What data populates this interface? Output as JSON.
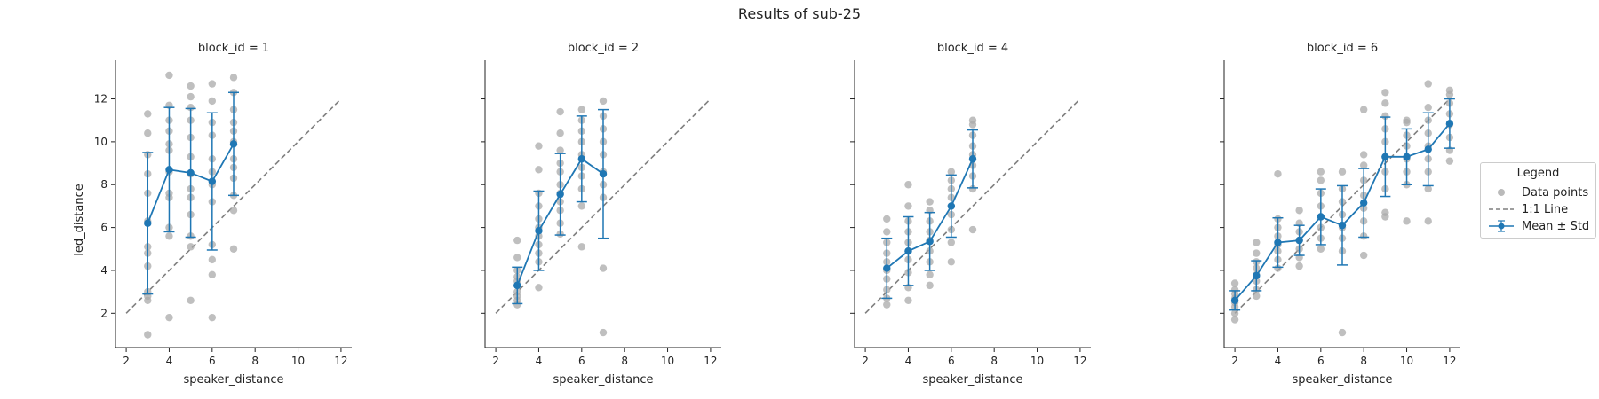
{
  "chart_data": {
    "type": "scatter",
    "title": "Results of sub-25",
    "xlabel": "speaker_distance",
    "ylabel": "led_distance",
    "xlim": [
      1.5,
      12.5
    ],
    "ylim": [
      0.4,
      13.8
    ],
    "xticks": [
      2,
      4,
      6,
      8,
      10,
      12
    ],
    "yticks": [
      2,
      4,
      6,
      8,
      10,
      12
    ],
    "identity_line": [
      2,
      12
    ],
    "colors": {
      "mean": "#1f77b4",
      "points": "#a9a9a9",
      "identity": "#7f7f7f"
    },
    "legend": {
      "title": "Legend",
      "entries": [
        "Data points",
        "1:1 Line",
        "Mean ± Std"
      ],
      "placement": "right"
    },
    "panels": [
      {
        "title": "block_id = 1",
        "mean": [
          {
            "x": 3,
            "mean": 6.2,
            "std": 3.3
          },
          {
            "x": 4,
            "mean": 8.7,
            "std": 2.9
          },
          {
            "x": 5,
            "mean": 8.55,
            "std": 3.0
          },
          {
            "x": 6,
            "mean": 8.15,
            "std": 3.2
          },
          {
            "x": 7,
            "mean": 9.9,
            "std": 2.4
          }
        ],
        "points": [
          [
            3,
            1.0
          ],
          [
            3,
            2.6
          ],
          [
            3,
            2.8
          ],
          [
            3,
            3.0
          ],
          [
            3,
            4.2
          ],
          [
            3,
            4.8
          ],
          [
            3,
            5.1
          ],
          [
            3,
            6.3
          ],
          [
            3,
            7.6
          ],
          [
            3,
            8.5
          ],
          [
            3,
            9.4
          ],
          [
            3,
            10.4
          ],
          [
            3,
            11.3
          ],
          [
            4,
            1.8
          ],
          [
            4,
            5.6
          ],
          [
            4,
            6.0
          ],
          [
            4,
            7.4
          ],
          [
            4,
            7.6
          ],
          [
            4,
            8.6
          ],
          [
            4,
            9.6
          ],
          [
            4,
            9.9
          ],
          [
            4,
            10.5
          ],
          [
            4,
            11.0
          ],
          [
            4,
            11.7
          ],
          [
            4,
            13.1
          ],
          [
            5,
            2.6
          ],
          [
            5,
            5.1
          ],
          [
            5,
            5.6
          ],
          [
            5,
            6.6
          ],
          [
            5,
            7.4
          ],
          [
            5,
            7.8
          ],
          [
            5,
            8.5
          ],
          [
            5,
            9.3
          ],
          [
            5,
            10.2
          ],
          [
            5,
            11.0
          ],
          [
            5,
            11.6
          ],
          [
            5,
            12.1
          ],
          [
            5,
            12.6
          ],
          [
            6,
            1.8
          ],
          [
            6,
            3.8
          ],
          [
            6,
            4.5
          ],
          [
            6,
            5.2
          ],
          [
            6,
            7.2
          ],
          [
            6,
            8.0
          ],
          [
            6,
            8.6
          ],
          [
            6,
            9.2
          ],
          [
            6,
            10.3
          ],
          [
            6,
            10.9
          ],
          [
            6,
            11.9
          ],
          [
            6,
            12.7
          ],
          [
            7,
            5.0
          ],
          [
            7,
            6.8
          ],
          [
            7,
            7.5
          ],
          [
            7,
            8.3
          ],
          [
            7,
            8.8
          ],
          [
            7,
            9.2
          ],
          [
            7,
            10.0
          ],
          [
            7,
            10.5
          ],
          [
            7,
            10.9
          ],
          [
            7,
            11.5
          ],
          [
            7,
            12.3
          ],
          [
            7,
            13.0
          ]
        ]
      },
      {
        "title": "block_id = 2",
        "mean": [
          {
            "x": 3,
            "mean": 3.3,
            "std": 0.85
          },
          {
            "x": 4,
            "mean": 5.85,
            "std": 1.85
          },
          {
            "x": 5,
            "mean": 7.55,
            "std": 1.9
          },
          {
            "x": 6,
            "mean": 9.2,
            "std": 2.0
          },
          {
            "x": 7,
            "mean": 8.5,
            "std": 3.0
          }
        ],
        "points": [
          [
            3,
            2.4
          ],
          [
            3,
            2.6
          ],
          [
            3,
            2.8
          ],
          [
            3,
            3.0
          ],
          [
            3,
            3.3
          ],
          [
            3,
            3.5
          ],
          [
            3,
            3.7
          ],
          [
            3,
            4.0
          ],
          [
            3,
            4.6
          ],
          [
            3,
            5.4
          ],
          [
            4,
            3.2
          ],
          [
            4,
            4.4
          ],
          [
            4,
            4.8
          ],
          [
            4,
            5.2
          ],
          [
            4,
            5.6
          ],
          [
            4,
            6.0
          ],
          [
            4,
            6.4
          ],
          [
            4,
            7.0
          ],
          [
            4,
            7.6
          ],
          [
            4,
            8.7
          ],
          [
            4,
            9.8
          ],
          [
            5,
            5.7
          ],
          [
            5,
            6.2
          ],
          [
            5,
            6.8
          ],
          [
            5,
            7.2
          ],
          [
            5,
            7.6
          ],
          [
            5,
            8.0
          ],
          [
            5,
            8.6
          ],
          [
            5,
            9.0
          ],
          [
            5,
            9.6
          ],
          [
            5,
            10.4
          ],
          [
            5,
            11.4
          ],
          [
            6,
            5.1
          ],
          [
            6,
            7.0
          ],
          [
            6,
            7.8
          ],
          [
            6,
            8.4
          ],
          [
            6,
            8.8
          ],
          [
            6,
            9.4
          ],
          [
            6,
            10.0
          ],
          [
            6,
            10.5
          ],
          [
            6,
            11.0
          ],
          [
            6,
            11.5
          ],
          [
            7,
            1.1
          ],
          [
            7,
            4.1
          ],
          [
            7,
            7.4
          ],
          [
            7,
            8.0
          ],
          [
            7,
            8.6
          ],
          [
            7,
            9.4
          ],
          [
            7,
            10.0
          ],
          [
            7,
            10.6
          ],
          [
            7,
            11.2
          ],
          [
            7,
            11.9
          ]
        ]
      },
      {
        "title": "block_id = 4",
        "mean": [
          {
            "x": 3,
            "mean": 4.1,
            "std": 1.4
          },
          {
            "x": 4,
            "mean": 4.9,
            "std": 1.6
          },
          {
            "x": 5,
            "mean": 5.35,
            "std": 1.35
          },
          {
            "x": 6,
            "mean": 7.0,
            "std": 1.45
          },
          {
            "x": 7,
            "mean": 9.2,
            "std": 1.35
          }
        ],
        "points": [
          [
            3,
            2.4
          ],
          [
            3,
            2.7
          ],
          [
            3,
            3.1
          ],
          [
            3,
            3.6
          ],
          [
            3,
            4.0
          ],
          [
            3,
            4.4
          ],
          [
            3,
            4.8
          ],
          [
            3,
            5.3
          ],
          [
            3,
            5.8
          ],
          [
            3,
            6.4
          ],
          [
            4,
            2.6
          ],
          [
            4,
            3.2
          ],
          [
            4,
            3.9
          ],
          [
            4,
            4.5
          ],
          [
            4,
            4.9
          ],
          [
            4,
            5.3
          ],
          [
            4,
            5.8
          ],
          [
            4,
            6.3
          ],
          [
            4,
            7.0
          ],
          [
            4,
            8.0
          ],
          [
            5,
            3.3
          ],
          [
            5,
            3.8
          ],
          [
            5,
            4.4
          ],
          [
            5,
            4.9
          ],
          [
            5,
            5.4
          ],
          [
            5,
            5.8
          ],
          [
            5,
            6.3
          ],
          [
            5,
            6.8
          ],
          [
            5,
            7.2
          ],
          [
            6,
            4.4
          ],
          [
            6,
            5.3
          ],
          [
            6,
            5.9
          ],
          [
            6,
            6.6
          ],
          [
            6,
            7.0
          ],
          [
            6,
            7.4
          ],
          [
            6,
            7.8
          ],
          [
            6,
            8.2
          ],
          [
            6,
            8.6
          ],
          [
            7,
            5.9
          ],
          [
            7,
            7.8
          ],
          [
            7,
            8.4
          ],
          [
            7,
            8.9
          ],
          [
            7,
            9.4
          ],
          [
            7,
            9.8
          ],
          [
            7,
            10.3
          ],
          [
            7,
            10.8
          ],
          [
            7,
            11.0
          ]
        ]
      },
      {
        "title": "block_id = 6",
        "mean": [
          {
            "x": 2,
            "mean": 2.6,
            "std": 0.45
          },
          {
            "x": 3,
            "mean": 3.75,
            "std": 0.7
          },
          {
            "x": 4,
            "mean": 5.3,
            "std": 1.15
          },
          {
            "x": 5,
            "mean": 5.4,
            "std": 0.7
          },
          {
            "x": 6,
            "mean": 6.5,
            "std": 1.3
          },
          {
            "x": 7,
            "mean": 6.1,
            "std": 1.85
          },
          {
            "x": 8,
            "mean": 7.15,
            "std": 1.6
          },
          {
            "x": 9,
            "mean": 9.3,
            "std": 1.85
          },
          {
            "x": 10,
            "mean": 9.3,
            "std": 1.3
          },
          {
            "x": 11,
            "mean": 9.65,
            "std": 1.7
          },
          {
            "x": 12,
            "mean": 10.85,
            "std": 1.15
          }
        ],
        "points": [
          [
            2,
            1.7
          ],
          [
            2,
            2.0
          ],
          [
            2,
            2.3
          ],
          [
            2,
            2.5
          ],
          [
            2,
            2.7
          ],
          [
            2,
            2.9
          ],
          [
            2,
            3.1
          ],
          [
            2,
            3.4
          ],
          [
            3,
            2.8
          ],
          [
            3,
            3.1
          ],
          [
            3,
            3.5
          ],
          [
            3,
            3.8
          ],
          [
            3,
            4.1
          ],
          [
            3,
            4.4
          ],
          [
            3,
            4.8
          ],
          [
            3,
            5.3
          ],
          [
            4,
            4.1
          ],
          [
            4,
            4.5
          ],
          [
            4,
            4.9
          ],
          [
            4,
            5.2
          ],
          [
            4,
            5.6
          ],
          [
            4,
            6.0
          ],
          [
            4,
            6.4
          ],
          [
            4,
            8.5
          ],
          [
            5,
            4.2
          ],
          [
            5,
            4.6
          ],
          [
            5,
            5.0
          ],
          [
            5,
            5.4
          ],
          [
            5,
            5.8
          ],
          [
            5,
            6.2
          ],
          [
            5,
            6.8
          ],
          [
            6,
            5.0
          ],
          [
            6,
            5.5
          ],
          [
            6,
            6.0
          ],
          [
            6,
            6.5
          ],
          [
            6,
            7.0
          ],
          [
            6,
            7.6
          ],
          [
            6,
            8.2
          ],
          [
            6,
            8.6
          ],
          [
            7,
            1.1
          ],
          [
            7,
            4.9
          ],
          [
            7,
            5.5
          ],
          [
            7,
            6.0
          ],
          [
            7,
            6.6
          ],
          [
            7,
            7.2
          ],
          [
            7,
            7.8
          ],
          [
            7,
            8.6
          ],
          [
            8,
            4.7
          ],
          [
            8,
            5.6
          ],
          [
            8,
            6.3
          ],
          [
            8,
            6.9
          ],
          [
            8,
            7.5
          ],
          [
            8,
            8.2
          ],
          [
            8,
            8.9
          ],
          [
            8,
            9.4
          ],
          [
            8,
            11.5
          ],
          [
            9,
            6.5
          ],
          [
            9,
            6.7
          ],
          [
            9,
            7.8
          ],
          [
            9,
            8.6
          ],
          [
            9,
            9.3
          ],
          [
            9,
            10.0
          ],
          [
            9,
            10.6
          ],
          [
            9,
            11.2
          ],
          [
            9,
            11.8
          ],
          [
            9,
            12.3
          ],
          [
            10,
            6.3
          ],
          [
            10,
            8.0
          ],
          [
            10,
            8.6
          ],
          [
            10,
            9.2
          ],
          [
            10,
            9.8
          ],
          [
            10,
            10.3
          ],
          [
            10,
            10.9
          ],
          [
            10,
            11.0
          ],
          [
            11,
            6.3
          ],
          [
            11,
            7.8
          ],
          [
            11,
            8.6
          ],
          [
            11,
            9.2
          ],
          [
            11,
            9.8
          ],
          [
            11,
            10.4
          ],
          [
            11,
            11.0
          ],
          [
            11,
            11.6
          ],
          [
            11,
            12.7
          ],
          [
            12,
            9.1
          ],
          [
            12,
            9.6
          ],
          [
            12,
            10.2
          ],
          [
            12,
            10.8
          ],
          [
            12,
            11.3
          ],
          [
            12,
            11.8
          ],
          [
            12,
            12.2
          ],
          [
            12,
            12.4
          ]
        ]
      }
    ]
  }
}
